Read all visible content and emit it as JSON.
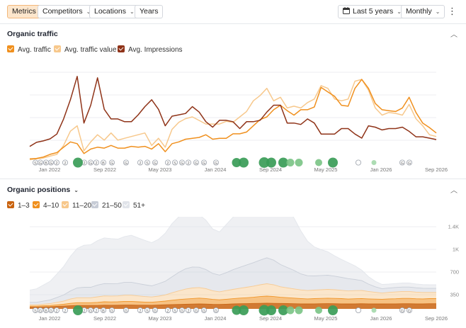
{
  "toolbar": {
    "tabs": [
      {
        "label": "Metrics",
        "active": true
      },
      {
        "label": "Competitors",
        "dropdown": true
      },
      {
        "label": "Locations",
        "dropdown": true
      },
      {
        "label": "Years"
      }
    ],
    "date_range": "Last 5 years",
    "interval": "Monthly",
    "icons": [
      "calendar-icon",
      "more-options-icon"
    ]
  },
  "organic_traffic": {
    "title": "Organic traffic",
    "legend": [
      {
        "label": "Avg. traffic",
        "color": "#f0901e"
      },
      {
        "label": "Avg. traffic value",
        "color": "#f7c88c"
      },
      {
        "label": "Avg. Impressions",
        "color": "#8f3318"
      }
    ]
  },
  "organic_positions": {
    "title": "Organic positions",
    "legend": [
      {
        "label": "1–3",
        "color": "#c9630f"
      },
      {
        "label": "4–10",
        "color": "#f0901e"
      },
      {
        "label": "11–20",
        "color": "#f7c88c"
      },
      {
        "label": "21–50",
        "color": "#c7ccd6"
      },
      {
        "label": "51+",
        "color": "#e1e4ea"
      }
    ]
  },
  "timeline": {
    "labels": [
      "Jan 2022",
      "Sep 2022",
      "May 2023",
      "Jan 2024",
      "Sep 2024",
      "May 2025",
      "Jan 2026",
      "Sep 2026"
    ],
    "marker_letters": [
      "S",
      "G",
      "B",
      "G",
      "2",
      "2",
      "2",
      "G",
      "2",
      "B",
      "G",
      "G",
      "2",
      "S",
      "G",
      "2",
      "S",
      "G",
      "2",
      "G",
      "G",
      "G"
    ]
  },
  "chart_data": [
    {
      "type": "line",
      "title": "Organic traffic",
      "x": [
        "Oct 2021",
        "Nov 2021",
        "Dec 2021",
        "Jan 2022",
        "Feb 2022",
        "Mar 2022",
        "Apr 2022",
        "May 2022",
        "Jun 2022",
        "Jul 2022",
        "Aug 2022",
        "Sep 2022",
        "Oct 2022",
        "Nov 2022",
        "Dec 2022",
        "Jan 2023",
        "Feb 2023",
        "Mar 2023",
        "Apr 2023",
        "May 2023",
        "Jun 2023",
        "Jul 2023",
        "Aug 2023",
        "Sep 2023",
        "Oct 2023",
        "Nov 2023",
        "Dec 2023",
        "Jan 2024",
        "Feb 2024",
        "Mar 2024",
        "Apr 2024",
        "May 2024",
        "Jun 2024",
        "Jul 2024",
        "Aug 2024",
        "Sep 2024",
        "Oct 2024",
        "Nov 2024",
        "Dec 2024",
        "Jan 2025",
        "Feb 2025",
        "Mar 2025",
        "Apr 2025",
        "May 2025",
        "Jun 2025",
        "Jul 2025",
        "Aug 2025",
        "Sep 2025",
        "Oct 2025",
        "Nov 2025",
        "Dec 2025",
        "Jan 2026",
        "Feb 2026",
        "Mar 2026",
        "Apr 2026",
        "May 2026",
        "Jun 2026",
        "Jul 2026",
        "Aug 2026",
        "Sep 2026",
        "Oct 2026"
      ],
      "series": [
        {
          "name": "Avg. traffic",
          "color": "#f0901e",
          "values": [
            3,
            3.5,
            5,
            8,
            10,
            16,
            22,
            20,
            9,
            14,
            16,
            15,
            18,
            15,
            15,
            17,
            16,
            17,
            14,
            20,
            11,
            20,
            22,
            25,
            26,
            27,
            30,
            25,
            26,
            26,
            31,
            31,
            33,
            40,
            47,
            50,
            58,
            63,
            57,
            52,
            58,
            58,
            61,
            83,
            78,
            73,
            63,
            62,
            82,
            92,
            82,
            65,
            58,
            57,
            56,
            60,
            72,
            55,
            43,
            38,
            32
          ]
        },
        {
          "name": "Avg. traffic value",
          "color": "#f7c88c",
          "values": [
            2,
            3,
            4,
            6,
            8,
            18,
            34,
            40,
            12,
            22,
            30,
            24,
            32,
            24,
            26,
            28,
            30,
            32,
            18,
            26,
            16,
            36,
            44,
            48,
            50,
            46,
            42,
            42,
            42,
            45,
            44,
            50,
            56,
            68,
            74,
            82,
            68,
            72,
            60,
            62,
            60,
            66,
            70,
            85,
            82,
            70,
            68,
            70,
            90,
            92,
            80,
            60,
            52,
            55,
            54,
            52,
            64,
            48,
            40,
            30,
            28
          ]
        }
      ],
      "secondary_series": {
        "name": "Avg. Impressions",
        "color": "#8f3318",
        "values": [
          22,
          28,
          30,
          33,
          40,
          62,
          90,
          124,
          56,
          82,
          122,
          76,
          62,
          62,
          58,
          58,
          68,
          80,
          90,
          76,
          52,
          66,
          68,
          70,
          80,
          72,
          58,
          50,
          60,
          60,
          58,
          48,
          58,
          58,
          60,
          72,
          82,
          82,
          56,
          56,
          54,
          62,
          56,
          40,
          40,
          40,
          48,
          48,
          40,
          34,
          52,
          50,
          46,
          48,
          48,
          50,
          44,
          36,
          36,
          34,
          32
        ]
      }
    },
    {
      "type": "area",
      "title": "Organic positions",
      "y_ticks": [
        "1.4K",
        "1K",
        "700",
        "350"
      ],
      "ylim": [
        0,
        1400
      ],
      "x": [
        "Oct 2021",
        "Nov 2021",
        "Dec 2021",
        "Jan 2022",
        "Feb 2022",
        "Mar 2022",
        "Apr 2022",
        "May 2022",
        "Jun 2022",
        "Jul 2022",
        "Aug 2022",
        "Sep 2022",
        "Oct 2022",
        "Nov 2022",
        "Dec 2022",
        "Jan 2023",
        "Feb 2023",
        "Mar 2023",
        "Apr 2023",
        "May 2023",
        "Jun 2023",
        "Jul 2023",
        "Aug 2023",
        "Sep 2023",
        "Oct 2023",
        "Nov 2023",
        "Dec 2023",
        "Jan 2024",
        "Feb 2024",
        "Mar 2024",
        "Apr 2024",
        "May 2024",
        "Jun 2024",
        "Jul 2024",
        "Aug 2024",
        "Sep 2024",
        "Oct 2024",
        "Nov 2024",
        "Dec 2024",
        "Jan 2025",
        "Feb 2025",
        "Mar 2025",
        "Apr 2025",
        "May 2025",
        "Jun 2025",
        "Jul 2025",
        "Aug 2025",
        "Sep 2025",
        "Oct 2025",
        "Nov 2025",
        "Dec 2025",
        "Jan 2026",
        "Feb 2026",
        "Mar 2026",
        "Apr 2026",
        "May 2026",
        "Jun 2026",
        "Jul 2026",
        "Aug 2026",
        "Sep 2026",
        "Oct 2026"
      ],
      "series": [
        {
          "name": "1–3",
          "color": "#c9630f",
          "values": [
            30,
            30,
            32,
            35,
            40,
            45,
            50,
            55,
            55,
            55,
            55,
            60,
            58,
            60,
            62,
            62,
            60,
            60,
            58,
            62,
            66,
            70,
            72,
            75,
            78,
            80,
            78,
            74,
            72,
            76,
            80,
            84,
            85,
            88,
            90,
            92,
            90,
            88,
            86,
            84,
            82,
            80,
            82,
            84,
            85,
            84,
            82,
            80,
            82,
            84,
            82,
            80,
            80,
            82,
            82,
            84,
            84,
            82,
            82,
            84,
            84
          ]
        },
        {
          "name": "4–10",
          "color": "#f0901e",
          "values": [
            15,
            15,
            18,
            20,
            25,
            30,
            40,
            45,
            45,
            45,
            50,
            55,
            55,
            55,
            60,
            60,
            55,
            50,
            50,
            55,
            60,
            70,
            80,
            85,
            90,
            95,
            90,
            80,
            75,
            80,
            85,
            90,
            95,
            100,
            110,
            115,
            110,
            100,
            95,
            90,
            85,
            82,
            84,
            86,
            88,
            86,
            84,
            80,
            82,
            84,
            80,
            78,
            76,
            80,
            82,
            86,
            86,
            82,
            80,
            82,
            82
          ]
        },
        {
          "name": "11–20",
          "color": "#f7c88c",
          "values": [
            20,
            20,
            25,
            30,
            40,
            50,
            70,
            80,
            80,
            80,
            90,
            95,
            95,
            95,
            100,
            100,
            95,
            90,
            85,
            90,
            100,
            120,
            140,
            160,
            170,
            170,
            160,
            140,
            130,
            140,
            150,
            160,
            170,
            180,
            190,
            200,
            190,
            170,
            160,
            150,
            140,
            135,
            138,
            140,
            142,
            140,
            135,
            130,
            132,
            130,
            120,
            110,
            100,
            105,
            110,
            112,
            112,
            108,
            104,
            100,
            100
          ]
        },
        {
          "name": "21–50",
          "color": "#c7ccd6",
          "values": [
            40,
            40,
            50,
            60,
            80,
            100,
            130,
            160,
            170,
            170,
            190,
            200,
            200,
            200,
            210,
            210,
            200,
            190,
            180,
            200,
            220,
            260,
            300,
            330,
            340,
            330,
            310,
            280,
            270,
            290,
            320,
            340,
            360,
            380,
            400,
            420,
            400,
            360,
            330,
            300,
            260,
            240,
            230,
            230,
            230,
            220,
            210,
            200,
            180,
            160,
            120,
            90,
            70,
            70,
            72,
            72,
            72,
            70,
            68,
            66,
            66
          ]
        },
        {
          "name": "51+",
          "color": "#e1e4ea",
          "values": [
            200,
            220,
            260,
            300,
            380,
            460,
            560,
            640,
            680,
            690,
            720,
            740,
            730,
            720,
            740,
            760,
            740,
            720,
            700,
            720,
            780,
            860,
            900,
            920,
            900,
            850,
            800,
            720,
            700,
            780,
            850,
            920,
            980,
            1050,
            1150,
            1250,
            1180,
            1050,
            950,
            850,
            700,
            560,
            470,
            420,
            380,
            330,
            290,
            260,
            220,
            170,
            120,
            90,
            70,
            65,
            65,
            65,
            65,
            62,
            60,
            58,
            58
          ]
        }
      ]
    }
  ]
}
